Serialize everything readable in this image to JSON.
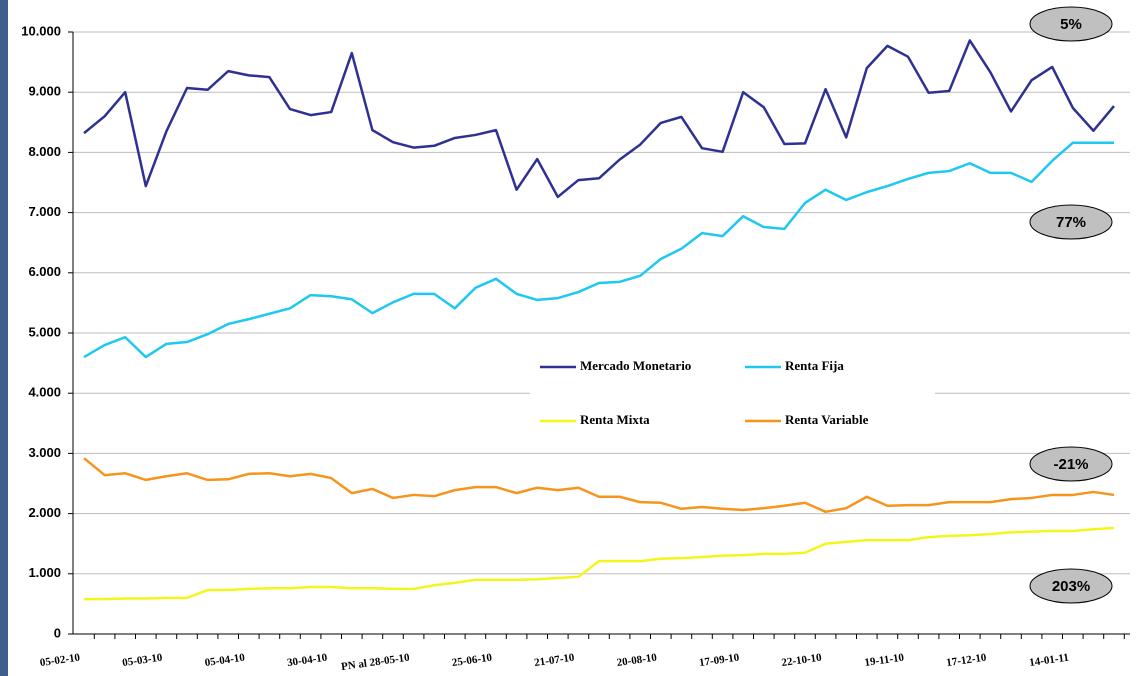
{
  "chart_data": {
    "type": "line",
    "categories": [
      "05-02-10",
      null,
      null,
      null,
      "05-03-10",
      null,
      null,
      null,
      "05-04-10",
      null,
      null,
      null,
      "30-04-10",
      null,
      null,
      null,
      "PN al 28-05-10",
      null,
      null,
      null,
      "25-06-10",
      null,
      null,
      null,
      "21-07-10",
      null,
      null,
      null,
      "20-08-10",
      null,
      null,
      null,
      "17-09-10",
      null,
      null,
      null,
      "22-10-10",
      null,
      null,
      null,
      "19-11-10",
      null,
      null,
      null,
      "17-12-10",
      null,
      null,
      null,
      "14-01-11",
      null,
      null
    ],
    "series": [
      {
        "name": "Mercado Monetario",
        "color": "#2e3192",
        "values": [
          8320,
          8600,
          9000,
          7440,
          8350,
          9070,
          9040,
          9350,
          9280,
          9250,
          8720,
          8620,
          8670,
          9650,
          8370,
          8170,
          8080,
          8110,
          8240,
          8290,
          8370,
          7380,
          7890,
          7260,
          7540,
          7570,
          7880,
          8130,
          8490,
          8590,
          8070,
          8010,
          9000,
          8750,
          8140,
          8150,
          9050,
          8250,
          9400,
          9770,
          9590,
          8990,
          9020,
          9860,
          9330,
          8680,
          9200,
          9420,
          8740,
          8360,
          8770
        ]
      },
      {
        "name": "Renta Fija",
        "color": "#1ec8f0",
        "values": [
          4600,
          4800,
          4930,
          4600,
          4820,
          4850,
          4980,
          5150,
          5230,
          5320,
          5410,
          5630,
          5610,
          5560,
          5330,
          5510,
          5650,
          5650,
          5410,
          5750,
          5900,
          5650,
          5550,
          5580,
          5680,
          5830,
          5850,
          5950,
          6230,
          6400,
          6660,
          6610,
          6940,
          6760,
          6730,
          7160,
          7380,
          7210,
          7340,
          7440,
          7560,
          7660,
          7690,
          7820,
          7660,
          7660,
          7510,
          7860,
          8160,
          8160,
          8160
        ]
      },
      {
        "name": "Renta Mixta",
        "color": "#f5f51e",
        "values": [
          580,
          580,
          590,
          590,
          600,
          600,
          730,
          730,
          750,
          760,
          760,
          780,
          780,
          760,
          760,
          750,
          750,
          810,
          850,
          900,
          900,
          900,
          910,
          930,
          950,
          1210,
          1210,
          1210,
          1250,
          1260,
          1280,
          1300,
          1310,
          1330,
          1330,
          1350,
          1500,
          1530,
          1560,
          1560,
          1560,
          1610,
          1630,
          1640,
          1660,
          1690,
          1700,
          1710,
          1710,
          1740,
          1760
        ]
      },
      {
        "name": "Renta Variable",
        "color": "#f7941d",
        "values": [
          2920,
          2640,
          2670,
          2560,
          2620,
          2670,
          2560,
          2570,
          2660,
          2670,
          2620,
          2660,
          2590,
          2340,
          2410,
          2260,
          2310,
          2290,
          2390,
          2440,
          2440,
          2340,
          2430,
          2390,
          2430,
          2280,
          2280,
          2190,
          2180,
          2080,
          2110,
          2080,
          2060,
          2090,
          2130,
          2180,
          2030,
          2090,
          2280,
          2130,
          2140,
          2140,
          2190,
          2190,
          2190,
          2240,
          2260,
          2310,
          2310,
          2360,
          2310
        ]
      }
    ],
    "ylim": [
      0,
      10000
    ],
    "yticks": [
      0,
      {
        "value": 1000,
        "label": "1.000"
      },
      {
        "value": 2000,
        "label": "2.000"
      },
      {
        "value": 3000,
        "label": "3.000"
      },
      {
        "value": 4000,
        "label": "4.000"
      },
      {
        "value": 5000,
        "label": "5.000"
      },
      {
        "value": 6000,
        "label": "6.000"
      },
      {
        "value": 7000,
        "label": "7.000"
      },
      {
        "value": 8000,
        "label": "8.000"
      },
      {
        "value": 9000,
        "label": "9.000"
      },
      {
        "value": 10000,
        "label": "10.000"
      }
    ],
    "grid": true,
    "annotations": [
      "5%",
      "77%",
      "-21%",
      "203%"
    ]
  }
}
